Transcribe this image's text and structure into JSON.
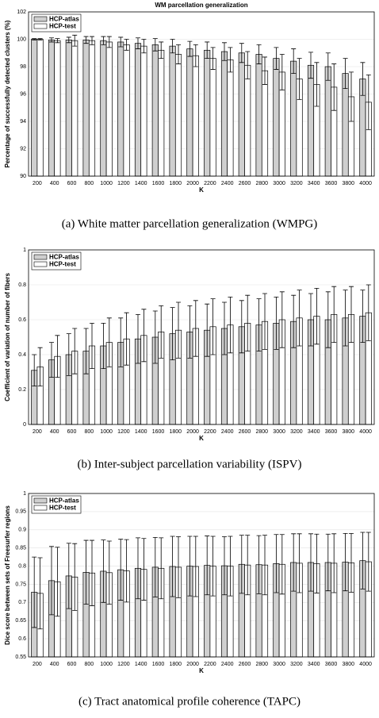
{
  "chart_data": [
    {
      "type": "bar",
      "title": "WM parcellation generalization",
      "ylabel": "Percentage of successfully detected clusters (%)",
      "xlabel": "K",
      "caption": "(a) White matter parcellation generalization (WMPG)",
      "categories": [
        "200",
        "400",
        "600",
        "800",
        "1000",
        "1200",
        "1400",
        "1600",
        "1800",
        "2000",
        "2200",
        "2400",
        "2600",
        "2800",
        "3000",
        "3200",
        "3400",
        "3600",
        "3800",
        "4000"
      ],
      "series": [
        {
          "name": "HCP-atlas",
          "color": "#cfcfcf",
          "values": [
            100,
            99.95,
            99.95,
            99.95,
            99.9,
            99.8,
            99.7,
            99.6,
            99.5,
            99.3,
            99.2,
            99.1,
            99.0,
            98.9,
            98.6,
            98.4,
            98.1,
            98.0,
            97.5,
            97.1
          ],
          "errors": [
            0.05,
            0.15,
            0.2,
            0.25,
            0.3,
            0.35,
            0.4,
            0.45,
            0.5,
            0.55,
            0.6,
            0.65,
            0.7,
            0.7,
            0.8,
            0.9,
            0.95,
            1.0,
            1.1,
            1.2
          ]
        },
        {
          "name": "HCP-test",
          "color": "#ffffff",
          "values": [
            100,
            99.9,
            99.9,
            99.9,
            99.8,
            99.6,
            99.5,
            99.2,
            98.9,
            98.8,
            98.6,
            98.5,
            98.1,
            97.7,
            97.6,
            97.1,
            96.7,
            96.5,
            95.8,
            95.4
          ],
          "errors": [
            0.05,
            0.15,
            0.4,
            0.3,
            0.4,
            0.4,
            0.5,
            0.6,
            0.7,
            0.8,
            0.8,
            0.9,
            1.0,
            1.0,
            1.3,
            1.5,
            1.6,
            1.7,
            1.8,
            2.0
          ]
        }
      ],
      "ylim": [
        90,
        102
      ],
      "yticks": [
        90,
        92,
        94,
        96,
        98,
        100,
        102
      ],
      "grid": true,
      "legend": "upper left"
    },
    {
      "type": "bar",
      "ylabel": "Coefficient of variation of number of fibers",
      "xlabel": "K",
      "caption": "(b) Inter-subject parcellation variability (ISPV)",
      "categories": [
        "200",
        "400",
        "600",
        "800",
        "1000",
        "1200",
        "1400",
        "1600",
        "1800",
        "2000",
        "2200",
        "2400",
        "2600",
        "2800",
        "3000",
        "3200",
        "3400",
        "3600",
        "3800",
        "4000"
      ],
      "series": [
        {
          "name": "HCP-atlas",
          "color": "#cfcfcf",
          "values": [
            0.31,
            0.37,
            0.4,
            0.42,
            0.45,
            0.47,
            0.49,
            0.5,
            0.52,
            0.53,
            0.54,
            0.55,
            0.56,
            0.57,
            0.58,
            0.59,
            0.6,
            0.6,
            0.61,
            0.62
          ],
          "errors": [
            0.09,
            0.1,
            0.12,
            0.13,
            0.13,
            0.14,
            0.14,
            0.15,
            0.15,
            0.15,
            0.15,
            0.15,
            0.15,
            0.15,
            0.15,
            0.15,
            0.15,
            0.16,
            0.16,
            0.15
          ]
        },
        {
          "name": "HCP-test",
          "color": "#ffffff",
          "values": [
            0.33,
            0.39,
            0.42,
            0.45,
            0.47,
            0.49,
            0.51,
            0.53,
            0.54,
            0.55,
            0.56,
            0.57,
            0.58,
            0.59,
            0.6,
            0.61,
            0.62,
            0.63,
            0.63,
            0.64
          ],
          "errors": [
            0.11,
            0.12,
            0.13,
            0.13,
            0.14,
            0.15,
            0.15,
            0.15,
            0.16,
            0.16,
            0.16,
            0.16,
            0.16,
            0.16,
            0.16,
            0.16,
            0.16,
            0.16,
            0.16,
            0.16
          ]
        }
      ],
      "ylim": [
        0,
        1
      ],
      "yticks": [
        0,
        0.2,
        0.4,
        0.6,
        0.8,
        1
      ],
      "grid": true,
      "legend": "upper left"
    },
    {
      "type": "bar",
      "ylabel": "Dice score between sets of Freesurfer regions",
      "xlabel": "K",
      "caption": "(c) Tract anatomical profile coherence (TAPC)",
      "categories": [
        "200",
        "400",
        "600",
        "800",
        "1000",
        "1200",
        "1400",
        "1600",
        "1800",
        "2000",
        "2200",
        "2400",
        "2600",
        "2800",
        "3000",
        "3200",
        "3400",
        "3600",
        "3800",
        "4000"
      ],
      "series": [
        {
          "name": "HCP-atlas",
          "color": "#cfcfcf",
          "values": [
            0.728,
            0.76,
            0.773,
            0.783,
            0.786,
            0.79,
            0.794,
            0.797,
            0.799,
            0.8,
            0.802,
            0.801,
            0.805,
            0.804,
            0.807,
            0.81,
            0.81,
            0.81,
            0.811,
            0.815
          ],
          "errors": [
            0.097,
            0.094,
            0.09,
            0.088,
            0.086,
            0.084,
            0.084,
            0.082,
            0.083,
            0.082,
            0.081,
            0.08,
            0.08,
            0.08,
            0.08,
            0.079,
            0.079,
            0.078,
            0.079,
            0.078
          ]
        },
        {
          "name": "HCP-test",
          "color": "#ffffff",
          "values": [
            0.725,
            0.757,
            0.77,
            0.781,
            0.782,
            0.787,
            0.791,
            0.794,
            0.797,
            0.799,
            0.8,
            0.8,
            0.803,
            0.803,
            0.805,
            0.808,
            0.807,
            0.808,
            0.809,
            0.812
          ],
          "errors": [
            0.098,
            0.095,
            0.092,
            0.09,
            0.087,
            0.086,
            0.085,
            0.084,
            0.084,
            0.083,
            0.082,
            0.082,
            0.082,
            0.082,
            0.082,
            0.081,
            0.081,
            0.081,
            0.081,
            0.081
          ]
        }
      ],
      "ylim": [
        0.55,
        1
      ],
      "yticks": [
        0.55,
        0.6,
        0.65,
        0.7,
        0.75,
        0.8,
        0.85,
        0.9,
        0.95,
        1
      ],
      "grid": true,
      "legend": "upper left"
    }
  ]
}
